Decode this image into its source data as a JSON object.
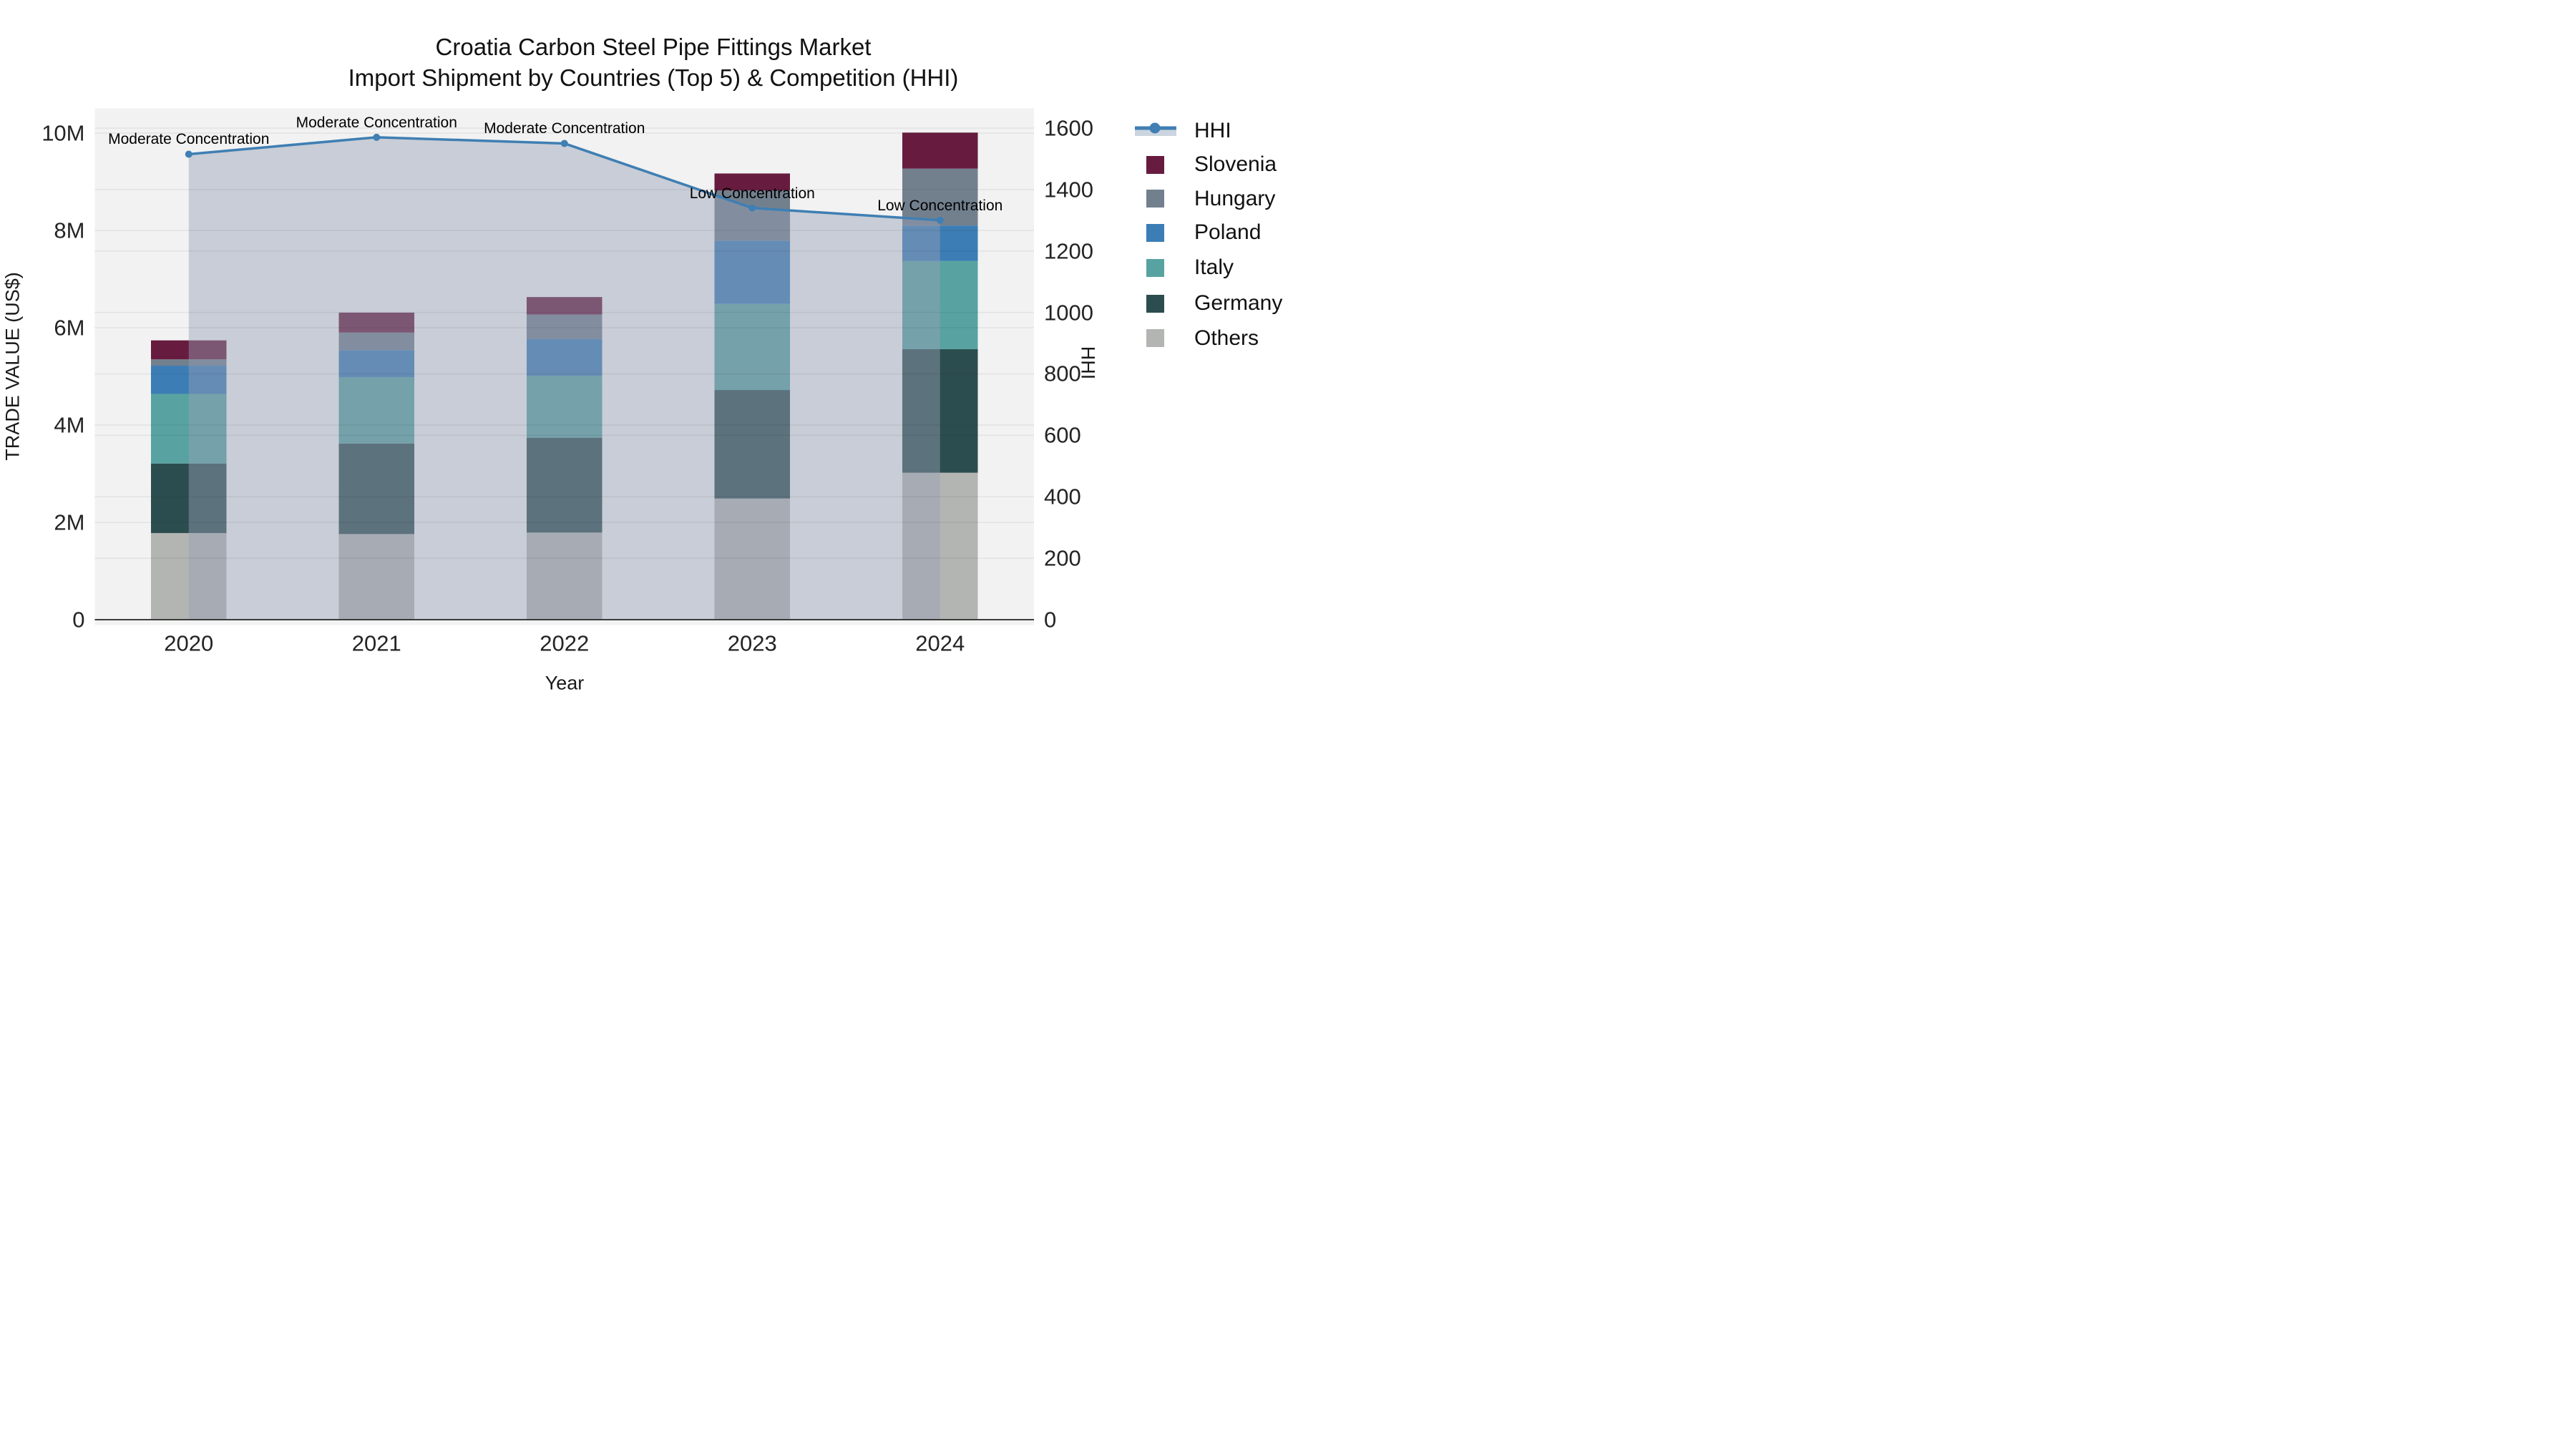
{
  "title": {
    "line1": "Croatia Carbon Steel Pipe Fittings Market",
    "line2": "Import Shipment by Countries (Top 5) & Competition (HHI)"
  },
  "axes": {
    "x": {
      "label": "Year",
      "ticks": [
        "2020",
        "2021",
        "2022",
        "2023",
        "2024"
      ]
    },
    "y_left": {
      "label": "TRADE VALUE (US$)",
      "ticks": [
        "0",
        "2M",
        "4M",
        "6M",
        "8M",
        "10M"
      ],
      "tick_values_millions": [
        0,
        2,
        4,
        6,
        8,
        10
      ]
    },
    "y_right": {
      "label": "HHI",
      "ticks": [
        "0",
        "200",
        "400",
        "600",
        "800",
        "1000",
        "1200",
        "1400",
        "1600"
      ],
      "tick_values": [
        0,
        200,
        400,
        600,
        800,
        1000,
        1200,
        1400,
        1600
      ]
    }
  },
  "legend": {
    "items": [
      {
        "label": "HHI",
        "type": "line",
        "color": "#3f7fb3",
        "area_color": "#ccd5df"
      },
      {
        "label": "Slovenia",
        "type": "square",
        "color": "#671c3f"
      },
      {
        "label": "Hungary",
        "type": "square",
        "color": "#72808e"
      },
      {
        "label": "Poland",
        "type": "square",
        "color": "#3c7db5"
      },
      {
        "label": "Italy",
        "type": "square",
        "color": "#58a3a1"
      },
      {
        "label": "Germany",
        "type": "square",
        "color": "#2c4d4f"
      },
      {
        "label": "Others",
        "type": "square",
        "color": "#b3b5b2"
      }
    ]
  },
  "colors": {
    "page_bg": "#ffffff",
    "plot_bg": "#f2f2f2",
    "grid": "rgba(30,30,30,0.07)",
    "zero_line": "#3b3b3b",
    "hhi_line": "#3f7fb3",
    "hhi_area_fill": "rgba(151,160,182,0.45)",
    "text": "#1a1a1a"
  },
  "chart_data": {
    "type": "bar+line",
    "title": "Croatia Carbon Steel Pipe Fittings Market — Import Shipment by Countries (Top 5) & Competition (HHI)",
    "categories": [
      "2020",
      "2021",
      "2022",
      "2023",
      "2024"
    ],
    "stacked": true,
    "bar_value_unit": "million US$ (trade value, left axis)",
    "bar_series": [
      {
        "name": "Others",
        "color": "#b3b5b2",
        "values": [
          1.78,
          1.76,
          1.79,
          2.49,
          3.02
        ]
      },
      {
        "name": "Germany",
        "color": "#2c4d4f",
        "values": [
          1.43,
          1.86,
          1.95,
          2.23,
          2.54
        ]
      },
      {
        "name": "Italy",
        "color": "#58a3a1",
        "values": [
          1.43,
          1.36,
          1.27,
          1.77,
          1.81
        ]
      },
      {
        "name": "Poland",
        "color": "#3c7db5",
        "values": [
          0.58,
          0.56,
          0.76,
          1.3,
          0.73
        ]
      },
      {
        "name": "Hungary",
        "color": "#72808e",
        "values": [
          0.13,
          0.36,
          0.5,
          1.03,
          1.17
        ]
      },
      {
        "name": "Slovenia",
        "color": "#671c3f",
        "values": [
          0.39,
          0.41,
          0.36,
          0.35,
          0.74
        ]
      }
    ],
    "bar_totals_millions": [
      5.74,
      6.31,
      6.63,
      9.17,
      10.01
    ],
    "line_series": {
      "name": "HHI",
      "axis": "right",
      "color": "#3f7fb3",
      "area_fill": "rgba(151,160,182,0.45)",
      "values": [
        1515,
        1570,
        1550,
        1340,
        1300
      ]
    },
    "annotations": [
      {
        "category": "2020",
        "text": "Moderate Concentration"
      },
      {
        "category": "2021",
        "text": "Moderate Concentration"
      },
      {
        "category": "2022",
        "text": "Moderate Concentration"
      },
      {
        "category": "2023",
        "text": "Low Concentration"
      },
      {
        "category": "2024",
        "text": "Low Concentration"
      }
    ],
    "xlabel": "Year",
    "ylabel_left": "TRADE VALUE (US$)",
    "ylabel_right": "HHI",
    "y_left_range_millions": [
      0,
      10.5
    ],
    "y_right_range": [
      0,
      1670
    ],
    "grid": true,
    "legend_position": "right"
  }
}
